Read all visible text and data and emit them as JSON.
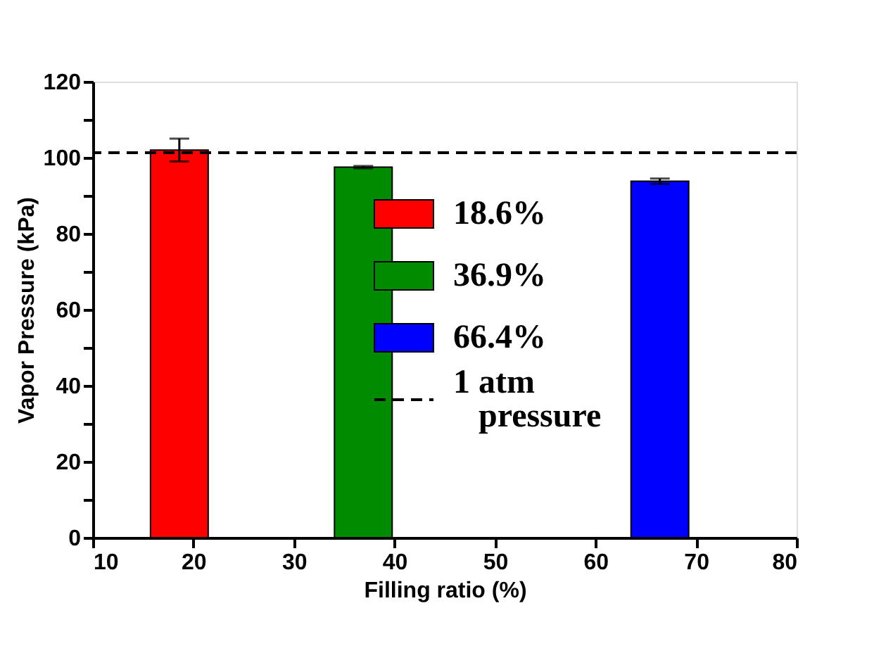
{
  "chart_data": {
    "type": "bar",
    "xlabel": "Filling ratio (%)",
    "ylabel": "Vapor Pressure (kPa)",
    "series": [
      {
        "name": "18.6%",
        "color": "#ff0000",
        "x": [
          18.6
        ],
        "values": [
          102
        ],
        "errors": [
          3
        ]
      },
      {
        "name": "36.9%",
        "color": "#008c00",
        "x": [
          36.9
        ],
        "values": [
          97.5
        ],
        "errors": [
          0.3
        ]
      },
      {
        "name": "66.4%",
        "color": "#0000ff",
        "x": [
          66.4
        ],
        "values": [
          93.8
        ],
        "errors": [
          0.7
        ]
      }
    ],
    "xlim": [
      10,
      80
    ],
    "xticks": [
      10,
      20,
      30,
      40,
      50,
      60,
      70,
      80
    ],
    "ylim": [
      0,
      120
    ],
    "yticks": [
      0,
      {
        "value": 10,
        "label": null
      },
      20,
      {
        "value": 30,
        "label": null
      },
      40,
      {
        "value": 50,
        "label": null
      },
      60,
      {
        "value": 70,
        "label": null
      },
      80,
      {
        "value": 90,
        "label": null
      },
      100,
      {
        "value": 110,
        "label": null
      },
      120
    ],
    "ref_lines": [
      {
        "axis": "y",
        "value": 101.3,
        "label": "1 atm pressure",
        "color": "#000000",
        "line_style": "dashed"
      }
    ],
    "legend": "right",
    "grid": false
  }
}
